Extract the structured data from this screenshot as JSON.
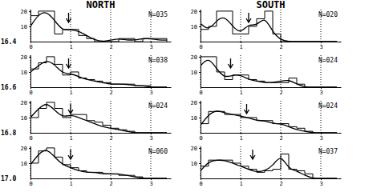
{
  "chart_data": [
    {
      "type": "histogram",
      "title": "NORTH",
      "ylabel": "16.4",
      "annotations": [
        "N=035"
      ],
      "bins": [
        0,
        0.2,
        0.4,
        0.6,
        0.8,
        1.0,
        1.2,
        1.4,
        1.6,
        1.8,
        2.0,
        2.2,
        2.4,
        2.6,
        2.8,
        3.0,
        3.2,
        3.4
      ],
      "values": [
        17,
        20,
        20,
        5,
        8,
        8,
        4,
        2,
        0,
        0,
        0,
        2,
        2,
        0,
        2,
        2,
        2
      ],
      "curve": {
        "x": [
          0,
          0.2,
          0.4,
          0.6,
          0.8,
          1.0,
          1.2,
          1.4,
          1.6,
          1.8,
          2.0,
          2.2,
          2.4,
          2.6,
          2.8,
          3.0,
          3.2,
          3.4
        ],
        "values": [
          10,
          18,
          20,
          14,
          7,
          8,
          7,
          4,
          1,
          0,
          1,
          2,
          1,
          1,
          2,
          2,
          1,
          1
        ]
      },
      "arrow": 0.95,
      "xlim": [
        0,
        3.5
      ],
      "ylim": [
        0,
        21
      ],
      "xticks": [
        0,
        1,
        2,
        3
      ],
      "yticks": [
        10,
        20
      ],
      "grid": true
    },
    {
      "type": "histogram",
      "title": "SOUTH",
      "annotations": [
        "N=020"
      ],
      "bins": [
        0,
        0.2,
        0.4,
        0.6,
        0.8,
        1.0,
        1.2,
        1.4,
        1.6,
        1.8,
        2.0,
        2.2,
        2.4,
        2.6,
        2.8,
        3.0,
        3.2,
        3.4
      ],
      "values": [
        8,
        10,
        20,
        20,
        5,
        5,
        10,
        15,
        20,
        5,
        0,
        0,
        0,
        0,
        0,
        0,
        0
      ],
      "curve": {
        "x": [
          0,
          0.2,
          0.4,
          0.6,
          0.8,
          1.0,
          1.2,
          1.4,
          1.6,
          1.8,
          2.0,
          2.2,
          2.4,
          2.6,
          2.8,
          3.0,
          3.2,
          3.4
        ],
        "values": [
          12,
          7,
          14,
          17,
          10,
          5,
          12,
          10,
          17,
          6,
          1,
          0,
          0,
          0,
          0,
          0,
          0,
          0
        ]
      },
      "arrow": 1.2,
      "xlim": [
        0,
        3.5
      ],
      "ylim": [
        0,
        21
      ],
      "xticks": [
        0,
        1,
        2,
        3
      ],
      "yticks": [
        10,
        20
      ],
      "grid": true
    },
    {
      "type": "histogram",
      "ylabel": "16.6",
      "annotations": [
        "N=038"
      ],
      "bins": [
        0,
        0.2,
        0.4,
        0.6,
        0.8,
        1.0,
        1.2,
        1.4,
        1.6,
        1.8,
        2.0,
        2.2,
        2.4,
        2.6,
        2.8,
        3.0,
        3.2,
        3.4
      ],
      "values": [
        12,
        16,
        20,
        15,
        8,
        10,
        6,
        5,
        4,
        3,
        2,
        2,
        2,
        1,
        1,
        0,
        0
      ],
      "curve": {
        "x": [
          0,
          0.2,
          0.4,
          0.6,
          0.8,
          1.0,
          1.2,
          1.4,
          1.6,
          1.8,
          2.0,
          2.2,
          2.4,
          2.6,
          2.8,
          3.0,
          3.2,
          3.4
        ],
        "values": [
          10,
          14,
          18,
          15,
          9,
          9,
          7,
          5,
          4,
          3,
          2,
          2,
          2,
          1,
          1,
          0,
          0,
          0
        ]
      },
      "arrow": 0.95,
      "xlim": [
        0,
        3.5
      ],
      "ylim": [
        0,
        21
      ],
      "xticks": [
        0,
        1,
        2,
        3
      ],
      "yticks": [
        10,
        20
      ],
      "grid": true
    },
    {
      "type": "histogram",
      "annotations": [
        "N=024"
      ],
      "bins": [
        0,
        0.2,
        0.4,
        0.6,
        0.8,
        1.0,
        1.2,
        1.4,
        1.6,
        1.8,
        2.0,
        2.2,
        2.4,
        2.6,
        2.8,
        3.0,
        3.2,
        3.4
      ],
      "values": [
        20,
        20,
        10,
        5,
        8,
        8,
        5,
        4,
        3,
        3,
        3,
        6,
        2,
        0,
        0,
        0,
        0
      ],
      "curve": {
        "x": [
          0,
          0.2,
          0.4,
          0.6,
          0.8,
          1.0,
          1.2,
          1.4,
          1.6,
          1.8,
          2.0,
          2.2,
          2.4,
          2.6,
          2.8,
          3.0,
          3.2,
          3.4
        ],
        "values": [
          14,
          20,
          12,
          6,
          8,
          8,
          5,
          4,
          3,
          3,
          4,
          5,
          2,
          0,
          0,
          0,
          0,
          0
        ]
      },
      "arrow": 0.75,
      "xlim": [
        0,
        3.5
      ],
      "ylim": [
        0,
        21
      ],
      "xticks": [
        0,
        1,
        2,
        3
      ],
      "yticks": [
        10,
        20
      ],
      "grid": true
    },
    {
      "type": "histogram",
      "ylabel": "16.8",
      "annotations": [
        "N=024"
      ],
      "bins": [
        0,
        0.2,
        0.4,
        0.6,
        0.8,
        1.0,
        1.2,
        1.4,
        1.6,
        1.8,
        2.0,
        2.2,
        2.4,
        2.6,
        2.8,
        3.0,
        3.2,
        3.4
      ],
      "values": [
        10,
        16,
        20,
        16,
        10,
        12,
        12,
        8,
        7,
        5,
        3,
        2,
        1,
        0,
        0,
        0,
        0
      ],
      "curve": {
        "x": [
          0,
          0.2,
          0.4,
          0.6,
          0.8,
          1.0,
          1.2,
          1.4,
          1.6,
          1.8,
          2.0,
          2.2,
          2.4,
          2.6,
          2.8,
          3.0,
          3.2,
          3.4
        ],
        "values": [
          10,
          16,
          20,
          15,
          10,
          12,
          10,
          8,
          6,
          4,
          3,
          2,
          1,
          0,
          0,
          0,
          0,
          0
        ]
      },
      "arrow": 1.0,
      "xlim": [
        0,
        3.5
      ],
      "ylim": [
        0,
        21
      ],
      "xticks": [
        0,
        1,
        2,
        3
      ],
      "yticks": [
        10,
        20
      ],
      "grid": true
    },
    {
      "type": "histogram",
      "annotations": [
        "N=024"
      ],
      "bins": [
        0,
        0.2,
        0.4,
        0.6,
        0.8,
        1.0,
        1.2,
        1.4,
        1.6,
        1.8,
        2.0,
        2.2,
        2.4,
        2.6,
        2.8,
        3.0,
        3.2,
        3.4
      ],
      "values": [
        6,
        14,
        14,
        12,
        12,
        10,
        10,
        8,
        8,
        6,
        6,
        4,
        3,
        1,
        0,
        0,
        0
      ],
      "curve": {
        "x": [
          0,
          0.2,
          0.4,
          0.6,
          0.8,
          1.0,
          1.2,
          1.4,
          1.6,
          1.8,
          2.0,
          2.2,
          2.4,
          2.6,
          2.8,
          3.0,
          3.2,
          3.4
        ],
        "values": [
          5,
          12,
          15,
          13,
          12,
          11,
          10,
          8,
          8,
          6,
          6,
          4,
          2,
          1,
          0,
          0,
          0,
          0
        ]
      },
      "arrow": 1.15,
      "xlim": [
        0,
        3.5
      ],
      "ylim": [
        0,
        21
      ],
      "xticks": [
        0,
        1,
        2,
        3
      ],
      "yticks": [
        10,
        20
      ],
      "grid": true
    },
    {
      "type": "histogram",
      "ylabel": "17.0",
      "annotations": [
        "N=060"
      ],
      "bins": [
        0,
        0.2,
        0.4,
        0.6,
        0.8,
        1.0,
        1.2,
        1.4,
        1.6,
        1.8,
        2.0,
        2.2,
        2.4,
        2.6,
        2.8,
        3.0,
        3.2,
        3.4
      ],
      "values": [
        10,
        18,
        20,
        14,
        9,
        7,
        5,
        4,
        4,
        3,
        3,
        2,
        2,
        1,
        0,
        0,
        0
      ],
      "curve": {
        "x": [
          0,
          0.2,
          0.4,
          0.6,
          0.8,
          1.0,
          1.2,
          1.4,
          1.6,
          1.8,
          2.0,
          2.2,
          2.4,
          2.6,
          2.8,
          3.0,
          3.2,
          3.4
        ],
        "values": [
          9,
          16,
          20,
          14,
          9,
          7,
          5,
          4,
          4,
          3,
          3,
          3,
          2,
          1,
          0,
          0,
          0,
          0
        ]
      },
      "arrow": 1.0,
      "xlim": [
        0,
        3.5
      ],
      "ylim": [
        0,
        21
      ],
      "xticks": [
        0,
        1,
        2,
        3
      ],
      "yticks": [
        10,
        20
      ],
      "grid": true
    },
    {
      "type": "histogram",
      "annotations": [
        "N=037"
      ],
      "bins": [
        0,
        0.2,
        0.4,
        0.6,
        0.8,
        1.0,
        1.2,
        1.4,
        1.6,
        1.8,
        2.0,
        2.2,
        2.4,
        2.6,
        2.8,
        3.0,
        3.2,
        3.4
      ],
      "values": [
        8,
        12,
        12,
        12,
        10,
        8,
        6,
        4,
        5,
        6,
        16,
        6,
        5,
        3,
        0,
        0,
        0
      ],
      "curve": {
        "x": [
          0,
          0.2,
          0.4,
          0.6,
          0.8,
          1.0,
          1.2,
          1.4,
          1.6,
          1.8,
          2.0,
          2.2,
          2.4,
          2.6,
          2.8,
          3.0,
          3.2,
          3.4
        ],
        "values": [
          5,
          11,
          12,
          12,
          10,
          8,
          6,
          4,
          5,
          8,
          16,
          6,
          5,
          2,
          0,
          0,
          0,
          0
        ]
      },
      "arrow": 1.3,
      "xlim": [
        0,
        3.5
      ],
      "ylim": [
        0,
        21
      ],
      "xticks": [
        0,
        1,
        2,
        3
      ],
      "yticks": [
        10,
        20
      ],
      "grid": true
    }
  ]
}
